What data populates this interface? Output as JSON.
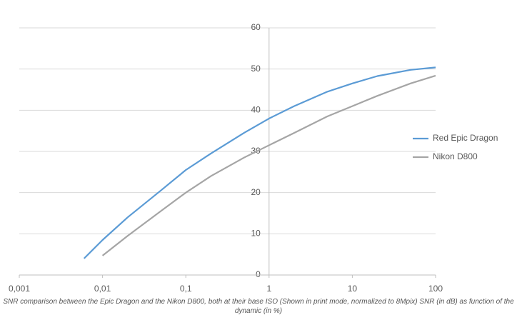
{
  "chart_data": {
    "type": "line",
    "caption": "SNR comparison between the Epic Dragon and the Nikon D800, both at their base ISO (Shown in print mode, normalized to 8Mpix) SNR (in dB) as function of the dynamic (in %)",
    "x": [
      0.006,
      0.01,
      0.02,
      0.05,
      0.1,
      0.2,
      0.5,
      1,
      2,
      5,
      10,
      20,
      50,
      100
    ],
    "series": [
      {
        "name": "Red Epic Dragon",
        "color": "#5b9bd5",
        "values": [
          4,
          8.5,
          14,
          20.5,
          25.5,
          29.5,
          34.5,
          38,
          41,
          44.5,
          46.5,
          48.3,
          49.8,
          50.4
        ]
      },
      {
        "name": "Nikon D800",
        "color": "#a5a5a5",
        "values": [
          null,
          4.7,
          9.5,
          15.5,
          20,
          24,
          28.5,
          31.5,
          34.5,
          38.5,
          41,
          43.5,
          46.5,
          48.4
        ]
      }
    ],
    "xscale": "log",
    "xlim": [
      0.001,
      100
    ],
    "xticks": [
      {
        "value": 0.001,
        "label": "0,001"
      },
      {
        "value": 0.01,
        "label": "0,01"
      },
      {
        "value": 0.1,
        "label": "0,1"
      },
      1,
      10,
      100
    ],
    "ylim": [
      0,
      60
    ],
    "yticks": [
      0,
      10,
      20,
      30,
      40,
      50,
      60
    ],
    "grid": true,
    "legend": "right"
  }
}
